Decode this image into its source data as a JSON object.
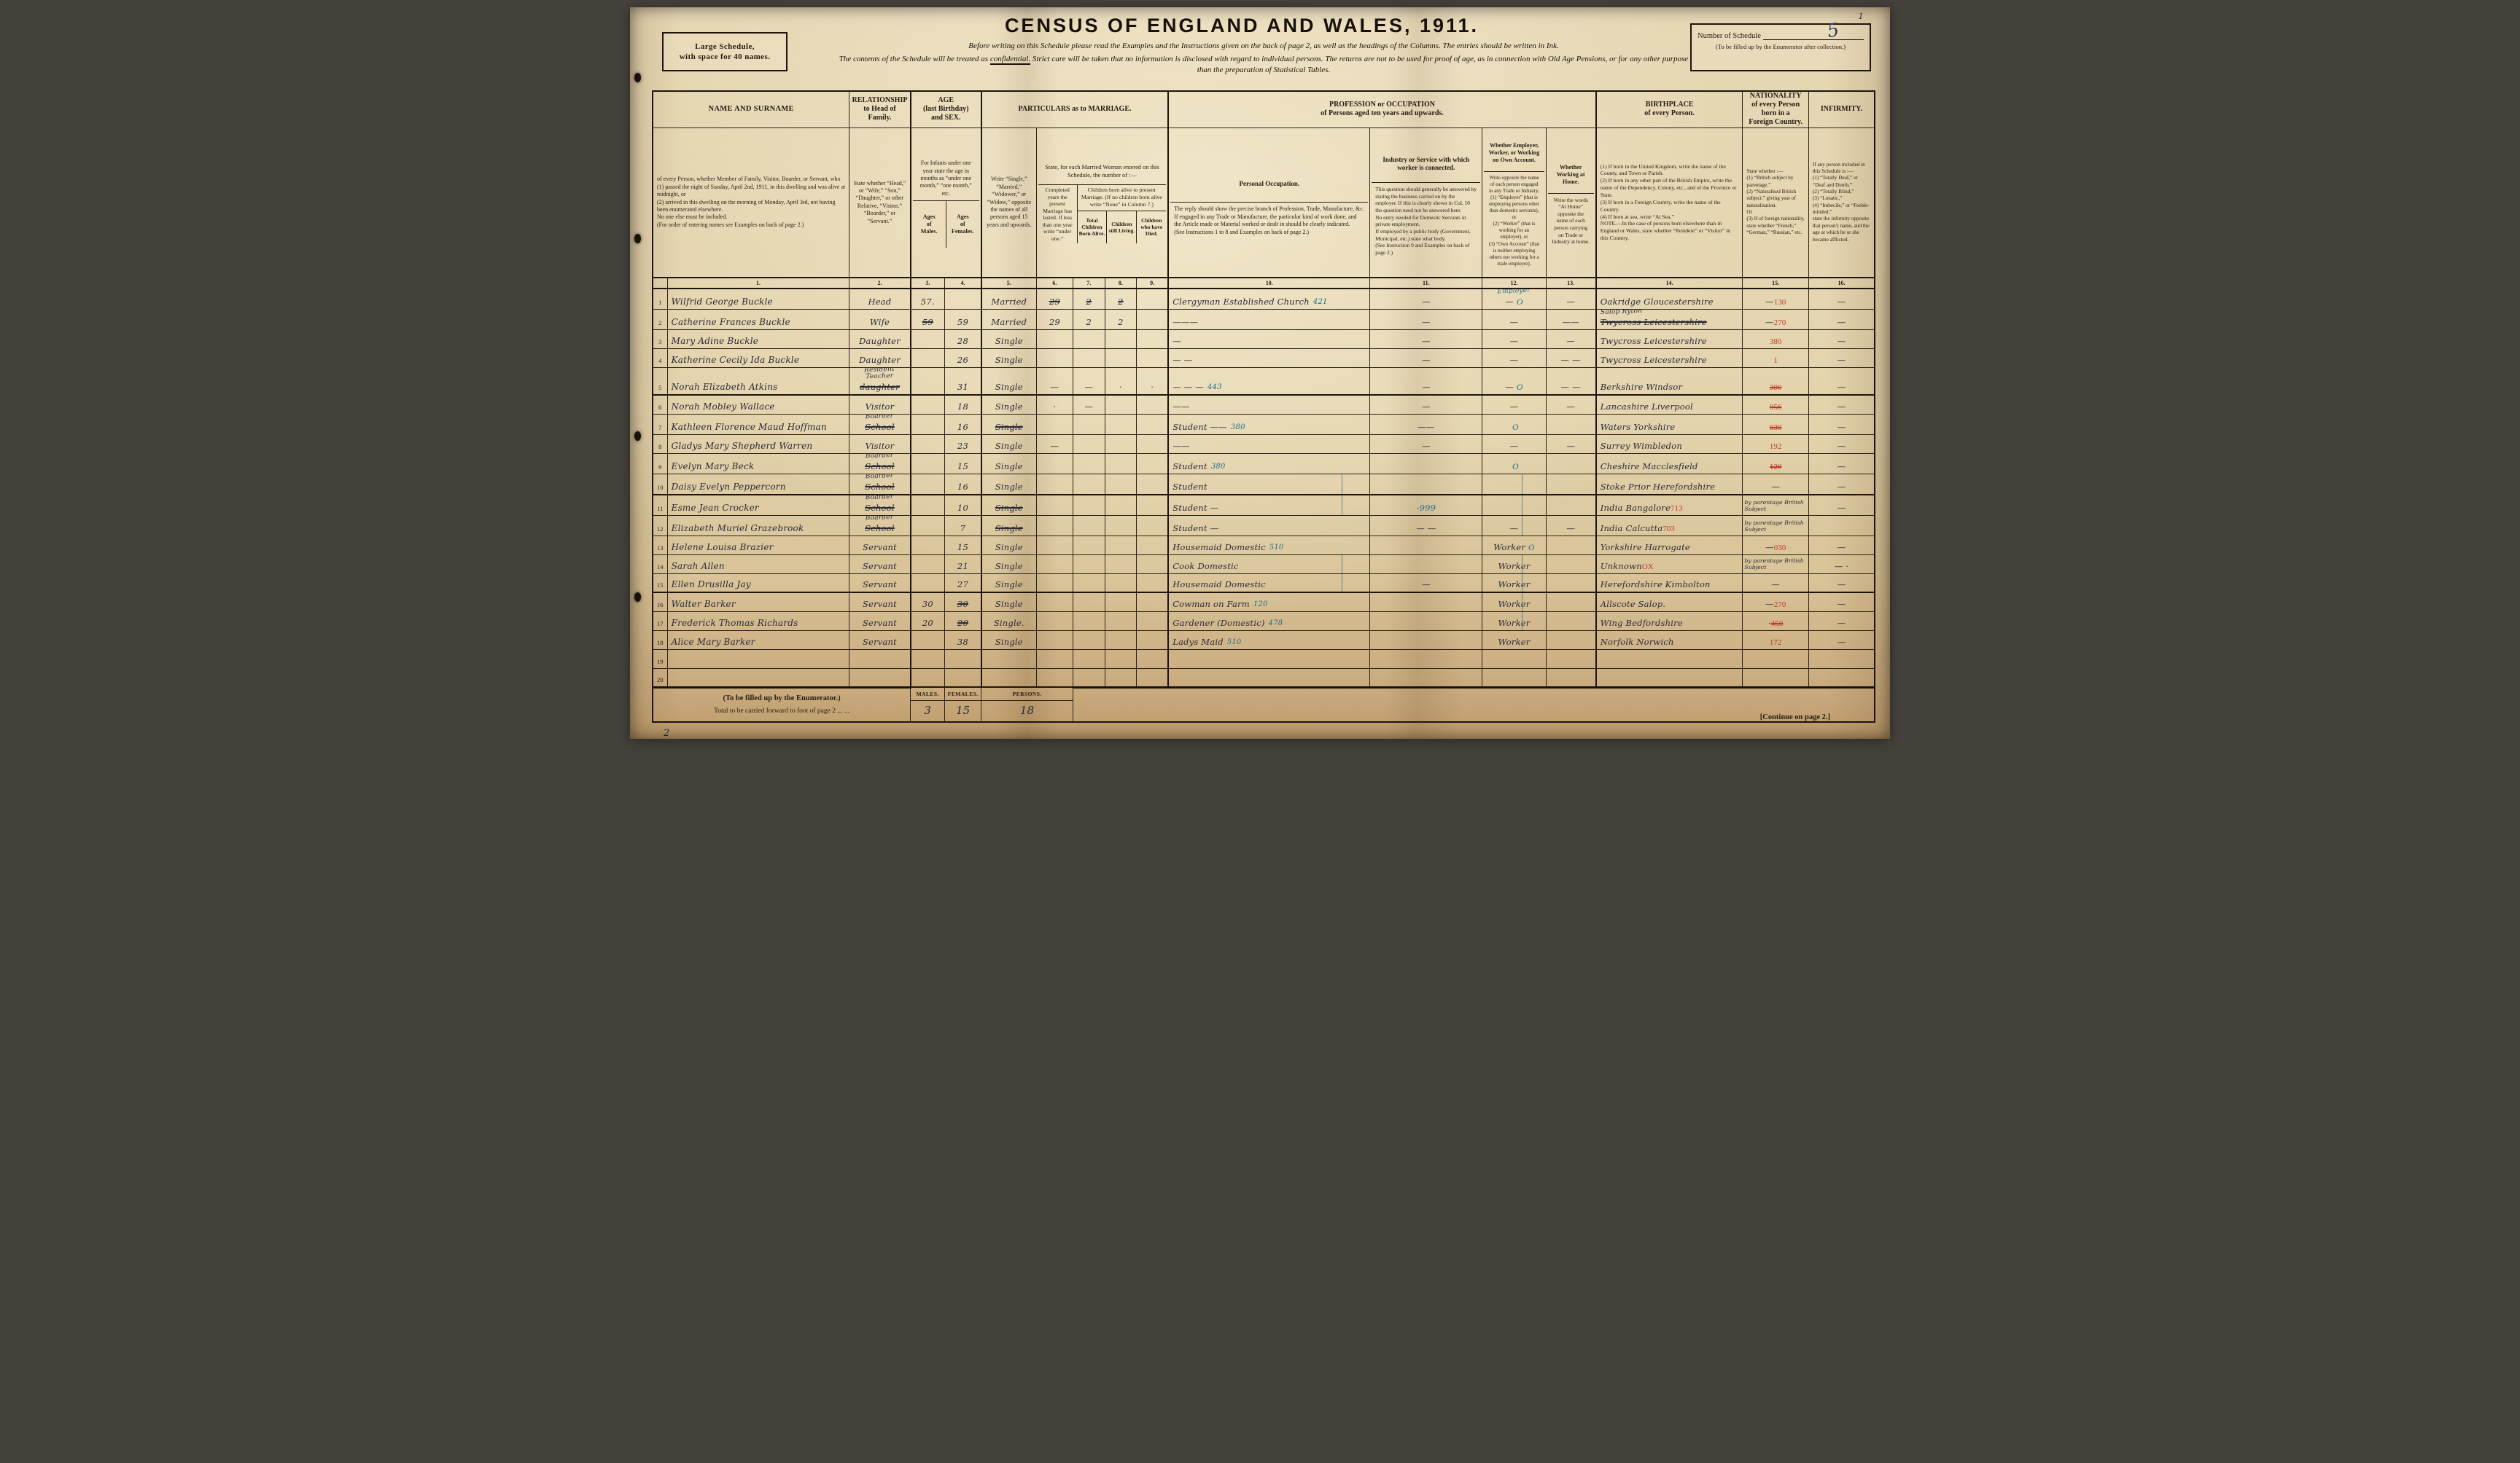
{
  "page": {
    "corner_page_number": "1",
    "footer_page_number": "2",
    "continue_note": "[Continue on page 2.]"
  },
  "masthead": {
    "size_box_line1": "Large Schedule,",
    "size_box_line2": "with space for 40 names.",
    "title": "CENSUS  OF  ENGLAND  AND  WALES,  1911.",
    "instruction_line": "Before writing on this Schedule please read the Examples and the Instructions given on the back of page 2, as well as the headings of the Columns.   The entries should be written in Ink.",
    "confidential_lead": "The contents of the Schedule will be treated as ",
    "confidential_word": "confidential.",
    "confidential_rest": "  Strict care will be taken that no information is disclosed with regard to individual persons.   The returns are not to be used for proof of age, as in connection with Old Age Pensions, or for any other purpose",
    "confidential_line2": "than the preparation of Statistical Tables.",
    "schedule_box": {
      "label": "Number of Schedule",
      "value": "5",
      "note": "(To be filled up by the Enumerator after collection.)"
    }
  },
  "table": {
    "headers": {
      "name_title": "NAME AND SURNAME",
      "name_body": "of every Person, whether Member of Family, Visitor, Boarder, or Servant, who\n(1) passed the night of Sunday, April 2nd, 1911, in this dwelling and was alive at midnight, or\n(2) arrived in this dwelling on the morning of Monday, April 3rd, not having been enumerated elsewhere.\nNo one else must be included.\n(For order of entering names see Examples on back of page 2.)",
      "relationship_title": "RELATIONSHIP\nto Head of\nFamily.",
      "relationship_body": "State whether “Head,” or “Wife,” “Son,” “Daughter,” or other Relative, “Visitor,” “Boarder,” or “Servant.”",
      "age_title": "AGE\n(last Birthday)\nand SEX.",
      "age_body": "For Infants under one year state the age in months as “under one month,” “one month,” etc.",
      "age_males": "Ages\nof\nMales.",
      "age_females": "Ages\nof\nFemales.",
      "marriage_group": "PARTICULARS as to MARRIAGE.",
      "marital_body": "Write “Single,” “Married,” “Widower,” or “Widow,” opposite the names of all persons aged 15 years and upwards.",
      "married_woman_head": "State, for each Married Woman entered on this Schedule, the number of :—",
      "years_body": "Completed years the present Marriage has lasted. If less than one year write “under one.”",
      "children_head": "Children born alive to present Marriage. (If no children born alive write “None” in Column 7.)",
      "children_born": "Total Children Born Alive.",
      "children_living": "Children still Living.",
      "children_died": "Children who have Died.",
      "profession_group": "PROFESSION or OCCUPATION\nof Persons aged ten years and upwards.",
      "occupation_title": "Personal Occupation.",
      "occupation_body": "The reply should show the precise branch of Profession, Trade, Manufacture, &c.\nIf engaged in any Trade or Manufacture, the particular kind of work done, and the Article made or Material worked or dealt in should be clearly indicated.\n(See Instructions 1 to 8 and Examples on back of page 2.)",
      "industry_title": "Industry or Service with which worker is connected.",
      "industry_body": "This question should generally be answered by stating the business carried on by the employer. If this is clearly shown in Col. 10 the question need not be answered here.\nNo entry needed for Domestic Servants in private employment.\nIf employed by a public body (Government, Municipal, etc.) state what body.\n(See Instruction 9 and Examples on back of page 2.)",
      "employer_title": "Whether Employer, Worker, or Working on Own Account.",
      "employer_body": "Write opposite the name of each person engaged in any Trade or Industry,\n(1) “Employer” (that is employing persons other than domestic servants), or\n(2) “Worker” (that is working for an employer), or\n(3) “Own Account” (that is neither employing others nor working for a trade employer).",
      "at_home_title": "Whether Working at Home.",
      "at_home_body": "Write the words “At Home” opposite the name of each person carrying on Trade or Industry at home.",
      "birthplace_title": "BIRTHPLACE\nof every Person.",
      "birthplace_body": "(1) If born in the United Kingdom, write the name of the County, and Town or Parish.\n(2) If born in any other part of the British Empire, write the name of the Dependency, Colony, etc., and of the Province or State.\n(3) If born in a Foreign Country, write the name of the Country.\n(4) If born at sea, write “At Sea.”\nNOTE.—In the case of persons born elsewhere than in England or Wales, state whether “Resident” or “Visitor” in this Country.",
      "nationality_title": "NATIONALITY\nof every Person\nborn in a\nForeign Country.",
      "nationality_body": "State whether :—\n(1) “British subject by parentage.”\n(2) “Naturalised British subject,” giving year of naturalisation.\nOr\n(3) If of foreign nationality, state whether “French,” “German,” “Russian,” etc.",
      "infirmity_title": "INFIRMITY.",
      "infirmity_body": "If any person included in this Schedule is :—\n(1) “Totally Deaf,” or “Deaf and Dumb,”\n(2) “Totally Blind,”\n(3) “Lunatic,”\n(4) “Imbecile,” or “Feeble-minded,”\nstate the infirmity opposite that person's name, and the age at which he or she became afflicted.",
      "column_numbers": [
        "1.",
        "2.",
        "3.",
        "4.",
        "5.",
        "6.",
        "7.",
        "8.",
        "9.",
        "10.",
        "11.",
        "12.",
        "13.",
        "14.",
        "15.",
        "16."
      ]
    },
    "rows": [
      {
        "no": "1",
        "name": "Wilfrid George Buckle",
        "rel": "Head",
        "am": "57.",
        "mar": "Married",
        "c6": {
          "t": "29",
          "struck": true
        },
        "c7": {
          "t": "2",
          "struck": true
        },
        "c8": {
          "t": "2",
          "struck": true
        },
        "occ": {
          "t": "Clergyman Established Church",
          "blue": "421"
        },
        "c11": "—",
        "c12": {
          "over": "Employer",
          "over_blue": true,
          "t": "—",
          "mark": "O"
        },
        "c13": "—",
        "bp": "Oakridge Gloucestershire",
        "nat": {
          "red": "130",
          "t": "—"
        },
        "inf": "—"
      },
      {
        "no": "2",
        "name": "Catherine Frances Buckle",
        "rel": "Wife",
        "am": {
          "t": "59",
          "struck": true
        },
        "af": "59",
        "mar": "Married",
        "c6": "29",
        "c7": "2",
        "c8": "2",
        "occ": "———",
        "c11": "—",
        "c12": "—",
        "c13": "——",
        "bp": {
          "over": "Salop Ryton",
          "t": "Twycross Leicestershire",
          "struck": true
        },
        "nat": {
          "red": "270",
          "t": "—"
        },
        "inf": "—"
      },
      {
        "no": "3",
        "name": "Mary Adine Buckle",
        "rel": "Daughter",
        "af": "28",
        "mar": "Single",
        "occ": "—",
        "c11": "—",
        "c12": "—",
        "c13": "—",
        "bp": "Twycross Leicestershire",
        "nat": {
          "red": "380"
        },
        "inf": "—"
      },
      {
        "no": "4",
        "name": "Katherine Cecily Ida Buckle",
        "rel": "Daughter",
        "af": "26",
        "mar": "Single",
        "occ": "— —",
        "c11": "—",
        "c12": "—",
        "c13": "— —",
        "bp": "Twycross Leicestershire",
        "nat": {
          "red": "1"
        },
        "inf": "—"
      },
      {
        "no": "5",
        "name": "Norah Elizabeth Atkins",
        "rel": {
          "over": "Resident Teacher",
          "t": "daughter",
          "struck": true
        },
        "af": "31",
        "mar": "Single",
        "c6": "—",
        "c7": "—",
        "c8": "·",
        "c9": "·",
        "occ": {
          "t": "— — —",
          "blue": "443"
        },
        "c11": "—",
        "c12": {
          "t": "—",
          "mark": "O"
        },
        "c13": "— —",
        "bp": "Berkshire Windsor",
        "nat": {
          "red": "300",
          "redStruck": true
        },
        "inf": "—"
      },
      {
        "no": "6",
        "name": "Norah Mobley Wallace",
        "rel": "Visitor",
        "af": "18",
        "mar": "Single",
        "c6": "·",
        "c7": "—",
        "occ": "——",
        "c11": "—",
        "c12": "—",
        "c13": "—",
        "bp": "Lancashire Liverpool",
        "nat": {
          "red": "056",
          "redStruck": true
        },
        "inf": "—"
      },
      {
        "no": "7",
        "name": "Kathleen Florence Maud Hoffman",
        "rel": {
          "over": "Boarder",
          "t": "School",
          "struck": true
        },
        "af": "16",
        "mar": {
          "t": "Single",
          "struck": true
        },
        "occ": {
          "t": "Student ——",
          "blue": "380"
        },
        "c11": "——",
        "c12": {
          "mark": "O"
        },
        "bp": "Waters Yorkshire",
        "nat": {
          "red": "030",
          "redStruck": true
        },
        "inf": "—"
      },
      {
        "no": "8",
        "name": "Gladys Mary Shepherd Warren",
        "rel": "Visitor",
        "af": "23",
        "mar": "Single",
        "c6": "—",
        "occ": "——",
        "c11": "—",
        "c12": "—",
        "c13": "—",
        "bp": "Surrey Wimbledon",
        "nat": {
          "red": "192"
        },
        "inf": "—"
      },
      {
        "no": "9",
        "name": "Evelyn Mary Beck",
        "rel": {
          "over": "Boarder",
          "t": "School",
          "struck": true
        },
        "af": "15",
        "mar": "Single",
        "occ": {
          "t": "Student",
          "blue": "380"
        },
        "c12": {
          "mark": "O"
        },
        "bp": "Cheshire Macclesfield",
        "nat": {
          "red": "120",
          "redStruck": true
        },
        "inf": "—"
      },
      {
        "no": "10",
        "name": "Daisy Evelyn Peppercorn",
        "rel": {
          "over": "Boarder",
          "t": "School",
          "struck": true
        },
        "af": "16",
        "mar": "Single",
        "occ": {
          "t": "Student",
          "cont": true
        },
        "c12": {
          "cont": true
        },
        "bp": "Stoke Prior Herefordshire",
        "nat": "—",
        "inf": "—"
      },
      {
        "no": "11",
        "name": "Esme Jean Crocker",
        "rel": {
          "over": "Boarder",
          "t": "School",
          "struck": true
        },
        "af": "10",
        "mar": {
          "t": "Single",
          "struck": true
        },
        "occ": {
          "t": "Student —",
          "cont": true
        },
        "c11": {
          "t": "-999",
          "tint": "blue"
        },
        "c12": {
          "cont": true
        },
        "bp": {
          "t": "India Bangalore",
          "red": "713"
        },
        "nat": "by parentage British Subject",
        "inf": "—"
      },
      {
        "no": "12",
        "name": "Elizabeth Muriel Grazebrook",
        "rel": {
          "over": "Boarder",
          "t": "School",
          "struck": true
        },
        "af": "7",
        "mar": {
          "t": "Single",
          "struck": true
        },
        "occ": "Student —",
        "c11": "— —",
        "c12": {
          "t": "—",
          "cont": true
        },
        "c13": "—",
        "bp": {
          "t": "India Calcutta",
          "red": "703"
        },
        "nat": "by parentage British Subject"
      },
      {
        "no": "13",
        "name": "Helene Louisa Brazier",
        "rel": "Servant",
        "af": "15",
        "mar": "Single",
        "occ": {
          "t": "Housemaid Domestic",
          "blue": "510"
        },
        "c12": {
          "t": "Worker",
          "mark": "O"
        },
        "bp": "Yorkshire Harrogate",
        "nat": {
          "red": "030",
          "t": "—"
        },
        "inf": "—"
      },
      {
        "no": "14",
        "name": "Sarah Allen",
        "rel": "Servant",
        "af": "21",
        "mar": "Single",
        "occ": {
          "t": "Cook Domestic",
          "cont": true
        },
        "c12": {
          "t": "Worker",
          "cont": true
        },
        "bp": {
          "t": "Unknown",
          "red": "OX"
        },
        "nat": "by parentage British Subject",
        "inf": "— ·"
      },
      {
        "no": "15",
        "name": "Ellen Drusilla Jay",
        "rel": "Servant",
        "af": "27",
        "mar": "Single",
        "occ": {
          "t": "Housemaid Domestic",
          "cont": true
        },
        "c11": "—",
        "c12": {
          "t": "Worker",
          "cont": true
        },
        "bp": "Herefordshire Kimbolton",
        "nat": "—",
        "inf": "—"
      },
      {
        "no": "16",
        "name": "Walter Barker",
        "rel": "Servant",
        "am": "30",
        "af": {
          "t": "30",
          "struck": true
        },
        "mar": "Single",
        "occ": {
          "t": "Cowman on Farm",
          "blue": "120"
        },
        "c12": {
          "t": "Worker",
          "cont": true
        },
        "bp": "Allscote Salop.",
        "nat": {
          "red": "270",
          "t": "—"
        },
        "inf": "—"
      },
      {
        "no": "17",
        "name": "Frederick Thomas Richards",
        "rel": "Servant",
        "am": "20",
        "af": {
          "t": "20",
          "struck": true
        },
        "mar": "Single.",
        "occ": {
          "t": "Gardener (Domestic)",
          "blue": "478"
        },
        "c12": {
          "t": "Worker",
          "cont": true
        },
        "bp": "Wing Bedfordshire",
        "nat": {
          "red": "450",
          "redStruck": true,
          "t": "·"
        },
        "inf": "—"
      },
      {
        "no": "18",
        "name": "Alice Mary Barker",
        "rel": "Servant",
        "af": "38",
        "mar": "Single",
        "occ": {
          "t": "Ladys Maid",
          "blue": "510"
        },
        "c12": "Worker",
        "bp": "Norfolk Norwich",
        "nat": {
          "red": "172"
        },
        "inf": "—"
      },
      {
        "no": "19"
      },
      {
        "no": "20"
      }
    ]
  },
  "totals": {
    "enumerator_label": "(To be filled up by the Enumerator.)",
    "carry_label": "Total to be carried forward to foot of page 2   ...          ...",
    "males_label": "MALES.",
    "females_label": "FEMALES.",
    "persons_label": "PERSONS.",
    "males": "3",
    "females": "15",
    "persons": "18"
  },
  "ink_colors": {
    "manuscript": "#2a2a38",
    "enumerator_blue": "#1f6f85",
    "registrar_red": "#bf3a2b"
  }
}
